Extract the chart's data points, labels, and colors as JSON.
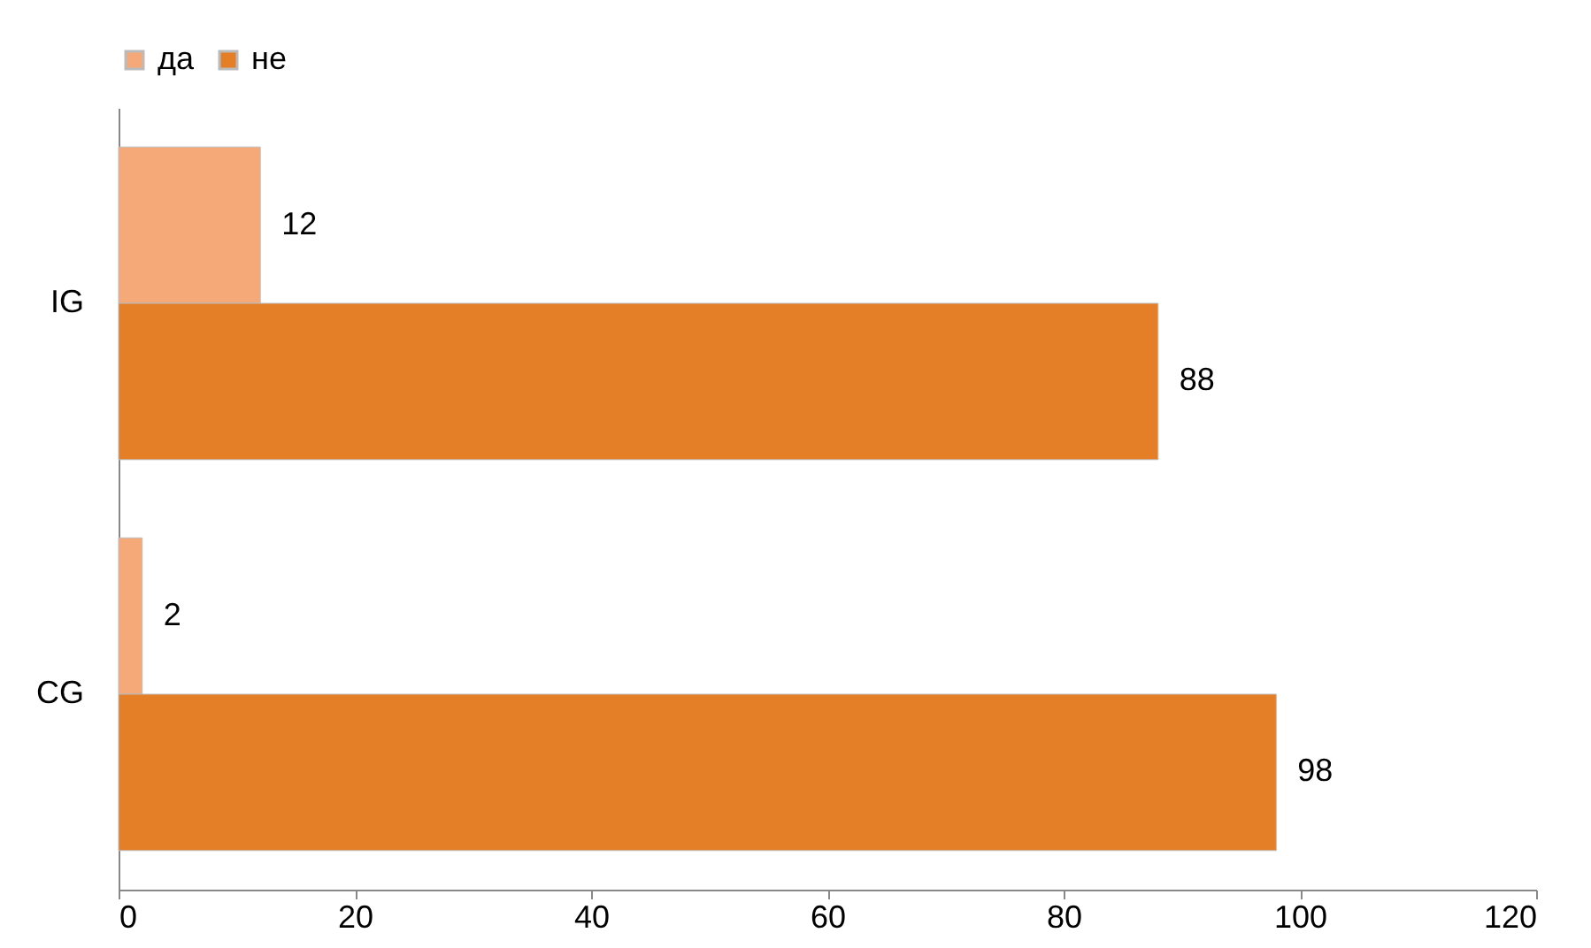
{
  "chart_data": {
    "type": "bar",
    "orientation": "horizontal",
    "categories": [
      "IG",
      "CG"
    ],
    "series": [
      {
        "name": "да",
        "color": "#f5a878",
        "values": [
          12,
          2
        ]
      },
      {
        "name": "не",
        "color": "#e57f27",
        "values": [
          88,
          98
        ]
      }
    ],
    "xlim": [
      0,
      120
    ],
    "xticks": [
      0,
      20,
      40,
      60,
      80,
      100,
      120
    ],
    "data_labels": true,
    "legend": "top",
    "grid": false
  }
}
